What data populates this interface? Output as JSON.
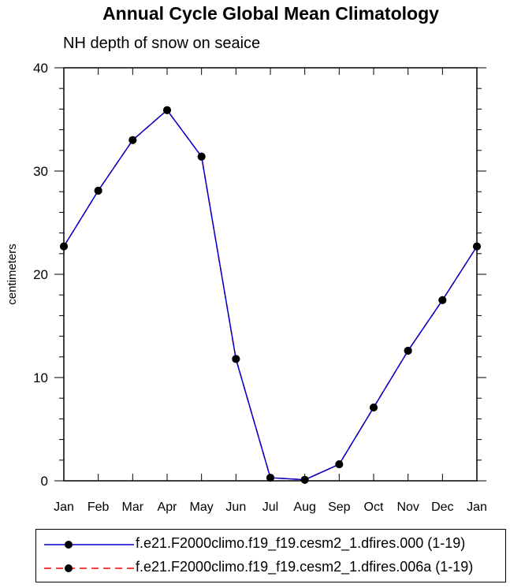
{
  "chart_data": {
    "type": "line",
    "title": "Annual Cycle Global Mean Climatology",
    "subtitle": "NH depth of snow on seaice",
    "xlabel": "",
    "ylabel": "centimeters",
    "categories": [
      "Jan",
      "Feb",
      "Mar",
      "Apr",
      "May",
      "Jun",
      "Jul",
      "Aug",
      "Sep",
      "Oct",
      "Nov",
      "Dec",
      "Jan"
    ],
    "ylim": [
      0,
      40
    ],
    "yticks": [
      0,
      10,
      20,
      30,
      40
    ],
    "grid": false,
    "legend_position": "bottom",
    "series": [
      {
        "name": "f.e21.F2000climo.f19_f19.cesm2_1.dfires.000 (1-19)",
        "color": "#0000cc",
        "line_style": "solid",
        "marker": "filled-circle",
        "values": [
          22.7,
          28.1,
          33.0,
          35.9,
          31.4,
          11.8,
          0.3,
          0.1,
          1.6,
          7.1,
          12.6,
          17.5,
          22.7
        ]
      },
      {
        "name": "f.e21.F2000climo.f19_f19.cesm2_1.dfires.006a (1-19)",
        "color": "#ff0000",
        "line_style": "dashed",
        "marker": "filled-circle",
        "values": [
          22.7,
          28.1,
          33.0,
          35.9,
          31.4,
          11.8,
          0.3,
          0.1,
          1.6,
          7.1,
          12.6,
          17.5,
          22.7
        ]
      }
    ]
  }
}
